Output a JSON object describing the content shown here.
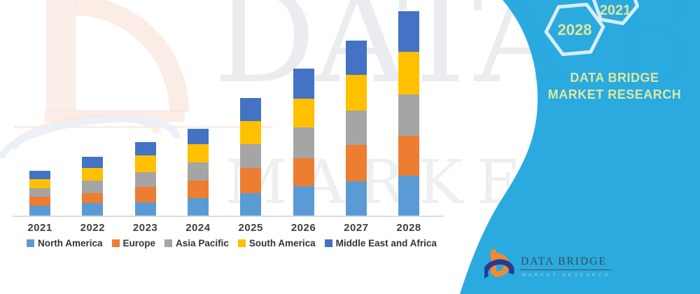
{
  "watermark": {
    "brand_text": "DATA BRIDGE",
    "tagline_text": "MARKET RESEARCH"
  },
  "side_panel": {
    "year_badge_back": "2021",
    "year_badge_front": "2028",
    "brand_caption": "DATA BRIDGE MARKET RESEARCH"
  },
  "footer_logo": {
    "title": "DATA BRIDGE",
    "subtitle": "MARKET RESEARCH"
  },
  "chart_data": {
    "type": "bar",
    "stacked": true,
    "orientation": "vertical",
    "title": "",
    "xlabel": "",
    "ylabel": "",
    "value_axis_visible": false,
    "gridlines": false,
    "legend_position": "bottom",
    "units": "relative height, no value axis shown (estimated px units)",
    "ylim": [
      0,
      300
    ],
    "categories": [
      "2021",
      "2022",
      "2023",
      "2024",
      "2025",
      "2026",
      "2027",
      "2028"
    ],
    "series": [
      {
        "name": "North America",
        "color": "#5B9BD5",
        "values": [
          14,
          18,
          19,
          25,
          32,
          42,
          49,
          57
        ]
      },
      {
        "name": "Europe",
        "color": "#ED7D31",
        "values": [
          13,
          14,
          22,
          25,
          36,
          40,
          52,
          57
        ]
      },
      {
        "name": "Asia Pacific",
        "color": "#A5A5A5",
        "values": [
          12,
          18,
          21,
          26,
          34,
          44,
          49,
          59
        ]
      },
      {
        "name": "South America",
        "color": "#FFC000",
        "values": [
          13,
          18,
          24,
          26,
          33,
          41,
          51,
          61
        ]
      },
      {
        "name": "Middle East and Africa",
        "color": "#4472C4",
        "values": [
          12,
          16,
          19,
          22,
          33,
          43,
          49,
          58
        ]
      }
    ],
    "estimated_totals": [
      64,
      84,
      105,
      124,
      168,
      210,
      250,
      292
    ]
  },
  "colors": {
    "panel_teal": "#1FA5DC",
    "hexagon_stroke": "#D6EEF7",
    "hexagon_text": "#DCE79E",
    "caption_text": "#DDE8A3",
    "axis_line": "#DCDCDC",
    "chart_text": "#3F3F3F",
    "logo_orange": "#F18A33",
    "logo_navy": "#2B3A8C",
    "logo_title_text": "#3E4A57",
    "logo_subtitle_text": "#8CCCDF"
  }
}
